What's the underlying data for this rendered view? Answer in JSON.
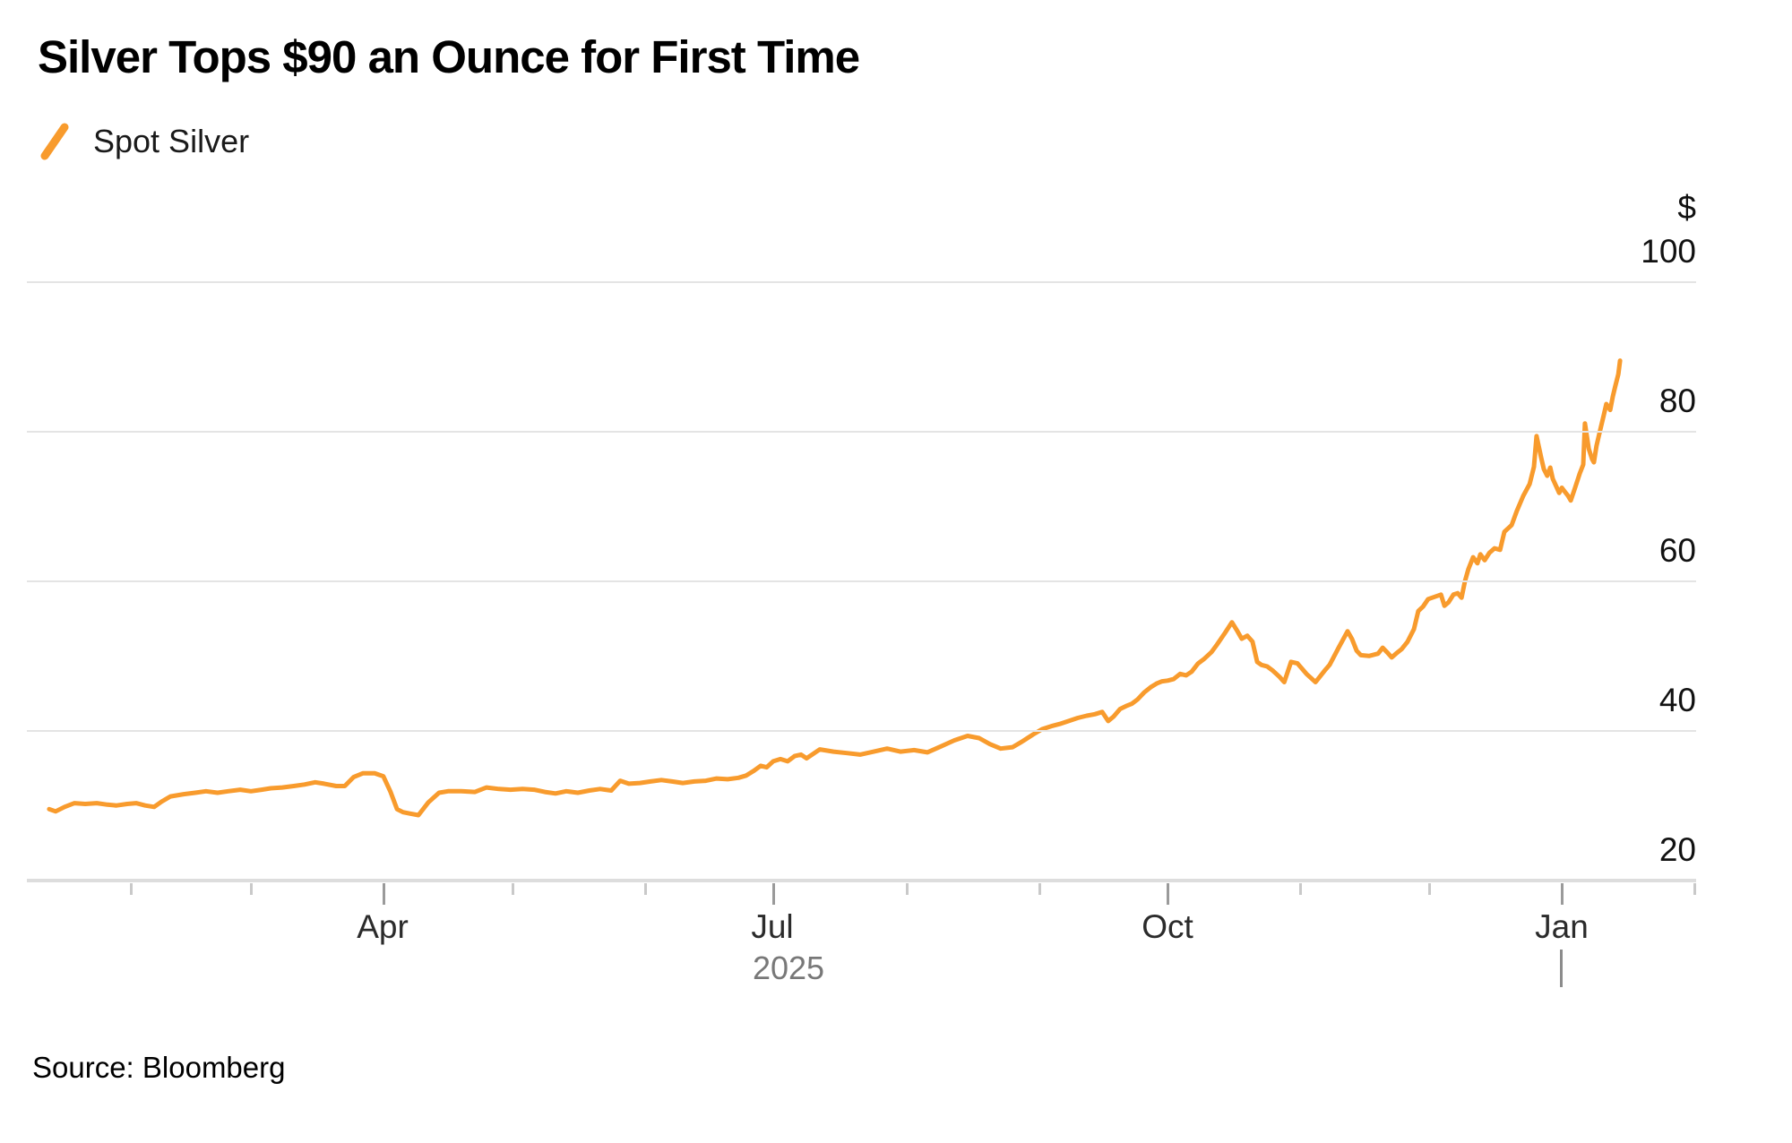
{
  "title": "Silver Tops $90 an Ounce for First Time",
  "legend": {
    "series_label": "Spot Silver"
  },
  "source": "Source: Bloomberg",
  "y_axis": {
    "unit": "$",
    "ticks": [
      {
        "label": "100",
        "value": 100
      },
      {
        "label": "80",
        "value": 80
      },
      {
        "label": "60",
        "value": 60
      },
      {
        "label": "40",
        "value": 40
      },
      {
        "label": "20",
        "value": 20
      }
    ]
  },
  "x_axis": {
    "major_labels": [
      "Apr",
      "Jul",
      "Oct",
      "Jan"
    ],
    "year_label": "2025"
  },
  "colors": {
    "line": "#F89B2D",
    "gridline": "#E4E4E4",
    "axisline": "#DDDDDD",
    "minor_tick": "#C9C9C9",
    "major_tick": "#9A9A9A",
    "title_text": "#000000",
    "axis_label_text": "#2B2B2B",
    "year_text": "#787878"
  },
  "chart_data": {
    "type": "line",
    "title": "Silver Tops $90 an Ounce for First Time",
    "xlabel": "",
    "ylabel": "$",
    "x_unit": "days since 2025-01-01 (0 = Jan 1 2025; 365 = Jan 1 2026)",
    "x_range_days": [
      11.9,
      378.6
    ],
    "ylim": [
      20,
      100
    ],
    "yticks": [
      100,
      80,
      60,
      40,
      20
    ],
    "baseline_tick": 20,
    "grid": "horizontal gridlines only, bottom axis line, labels on right",
    "legend_position": "top-left",
    "year_tick_day": 365,
    "month_ticks": [
      {
        "month": "Feb",
        "day": 31,
        "major": false
      },
      {
        "month": "Mar",
        "day": 59,
        "major": false
      },
      {
        "month": "Apr",
        "day": 90,
        "major": true
      },
      {
        "month": "May",
        "day": 120,
        "major": false
      },
      {
        "month": "Jun",
        "day": 151,
        "major": false
      },
      {
        "month": "Jul",
        "day": 181,
        "major": true
      },
      {
        "month": "Aug",
        "day": 212,
        "major": false
      },
      {
        "month": "Sep",
        "day": 243,
        "major": false
      },
      {
        "month": "Oct",
        "day": 273,
        "major": true
      },
      {
        "month": "Nov",
        "day": 304,
        "major": false
      },
      {
        "month": "Dec",
        "day": 334,
        "major": false
      },
      {
        "month": "Jan",
        "day": 365,
        "major": true
      },
      {
        "month": "Feb",
        "day": 396,
        "major": false
      }
    ],
    "series": [
      {
        "name": "Spot Silver",
        "color": "#F89B2D",
        "points": [
          [
            11.9,
            29.5
          ],
          [
            13.4,
            29.2
          ],
          [
            15.5,
            29.8
          ],
          [
            17.8,
            30.3
          ],
          [
            20.3,
            30.2
          ],
          [
            23.0,
            30.3
          ],
          [
            25.5,
            30.1
          ],
          [
            27.6,
            30.0
          ],
          [
            30.1,
            30.2
          ],
          [
            32.2,
            30.3
          ],
          [
            34.3,
            30.0
          ],
          [
            36.4,
            29.8
          ],
          [
            38.1,
            30.5
          ],
          [
            40.2,
            31.2
          ],
          [
            43.3,
            31.5
          ],
          [
            46.0,
            31.7
          ],
          [
            48.5,
            31.9
          ],
          [
            51.2,
            31.7
          ],
          [
            53.7,
            31.9
          ],
          [
            56.5,
            32.1
          ],
          [
            59.0,
            31.9
          ],
          [
            61.5,
            32.1
          ],
          [
            63.6,
            32.3
          ],
          [
            66.3,
            32.4
          ],
          [
            69.0,
            32.6
          ],
          [
            71.5,
            32.8
          ],
          [
            74.0,
            33.1
          ],
          [
            76.1,
            32.9
          ],
          [
            78.9,
            32.6
          ],
          [
            80.9,
            32.6
          ],
          [
            83.0,
            33.8
          ],
          [
            85.1,
            34.3
          ],
          [
            87.9,
            34.3
          ],
          [
            89.9,
            33.9
          ],
          [
            91.6,
            31.8
          ],
          [
            93.1,
            29.5
          ],
          [
            94.5,
            29.1
          ],
          [
            96.2,
            28.9
          ],
          [
            98.1,
            28.7
          ],
          [
            100.4,
            30.4
          ],
          [
            102.9,
            31.7
          ],
          [
            105.0,
            31.9
          ],
          [
            108.1,
            31.9
          ],
          [
            111.3,
            31.8
          ],
          [
            114.0,
            32.4
          ],
          [
            116.9,
            32.2
          ],
          [
            119.6,
            32.1
          ],
          [
            122.4,
            32.2
          ],
          [
            125.1,
            32.1
          ],
          [
            127.6,
            31.8
          ],
          [
            130.1,
            31.6
          ],
          [
            132.6,
            31.9
          ],
          [
            135.3,
            31.7
          ],
          [
            138.0,
            32.0
          ],
          [
            140.5,
            32.2
          ],
          [
            143.1,
            32.0
          ],
          [
            145.2,
            33.3
          ],
          [
            147.2,
            32.9
          ],
          [
            149.8,
            33.0
          ],
          [
            152.3,
            33.2
          ],
          [
            154.8,
            33.4
          ],
          [
            157.3,
            33.2
          ],
          [
            159.8,
            33.0
          ],
          [
            162.5,
            33.2
          ],
          [
            165.2,
            33.3
          ],
          [
            167.7,
            33.6
          ],
          [
            170.3,
            33.5
          ],
          [
            172.8,
            33.7
          ],
          [
            174.6,
            34.0
          ],
          [
            176.3,
            34.6
          ],
          [
            178.0,
            35.3
          ],
          [
            179.4,
            35.1
          ],
          [
            180.9,
            35.9
          ],
          [
            182.6,
            36.2
          ],
          [
            184.3,
            35.9
          ],
          [
            185.9,
            36.6
          ],
          [
            187.4,
            36.8
          ],
          [
            188.7,
            36.3
          ],
          [
            191.8,
            37.5
          ],
          [
            195.0,
            37.2
          ],
          [
            198.1,
            37.0
          ],
          [
            201.2,
            36.8
          ],
          [
            204.4,
            37.2
          ],
          [
            207.5,
            37.6
          ],
          [
            210.6,
            37.2
          ],
          [
            213.8,
            37.4
          ],
          [
            216.9,
            37.1
          ],
          [
            220.1,
            37.9
          ],
          [
            223.2,
            38.7
          ],
          [
            226.3,
            39.3
          ],
          [
            229.0,
            39.0
          ],
          [
            231.5,
            38.2
          ],
          [
            234.0,
            37.6
          ],
          [
            236.8,
            37.8
          ],
          [
            238.9,
            38.5
          ],
          [
            241.6,
            39.5
          ],
          [
            243.7,
            40.2
          ],
          [
            245.8,
            40.6
          ],
          [
            247.8,
            40.9
          ],
          [
            249.9,
            41.3
          ],
          [
            252.0,
            41.7
          ],
          [
            254.1,
            42.0
          ],
          [
            256.0,
            42.2
          ],
          [
            257.7,
            42.5
          ],
          [
            259.1,
            41.3
          ],
          [
            260.4,
            41.9
          ],
          [
            261.9,
            42.9
          ],
          [
            263.3,
            43.3
          ],
          [
            264.6,
            43.6
          ],
          [
            266.0,
            44.2
          ],
          [
            267.5,
            45.1
          ],
          [
            269.0,
            45.8
          ],
          [
            270.4,
            46.3
          ],
          [
            271.7,
            46.6
          ],
          [
            273.0,
            46.7
          ],
          [
            274.4,
            46.9
          ],
          [
            275.9,
            47.6
          ],
          [
            277.3,
            47.4
          ],
          [
            278.6,
            47.9
          ],
          [
            280.1,
            49.0
          ],
          [
            281.5,
            49.6
          ],
          [
            283.2,
            50.5
          ],
          [
            284.5,
            51.5
          ],
          [
            286.4,
            53.1
          ],
          [
            288.0,
            54.5
          ],
          [
            289.3,
            53.3
          ],
          [
            290.3,
            52.3
          ],
          [
            291.6,
            52.7
          ],
          [
            292.8,
            51.9
          ],
          [
            293.9,
            49.2
          ],
          [
            294.9,
            48.8
          ],
          [
            296.2,
            48.6
          ],
          [
            297.6,
            48.0
          ],
          [
            299.1,
            47.2
          ],
          [
            300.2,
            46.5
          ],
          [
            301.8,
            49.2
          ],
          [
            303.3,
            49.0
          ],
          [
            305.4,
            47.6
          ],
          [
            307.5,
            46.5
          ],
          [
            309.6,
            48.0
          ],
          [
            310.8,
            48.8
          ],
          [
            312.9,
            51.1
          ],
          [
            315.0,
            53.3
          ],
          [
            316.0,
            52.3
          ],
          [
            317.1,
            50.7
          ],
          [
            318.1,
            50.1
          ],
          [
            320.0,
            50.0
          ],
          [
            322.1,
            50.3
          ],
          [
            323.2,
            51.1
          ],
          [
            324.2,
            50.5
          ],
          [
            325.3,
            49.8
          ],
          [
            326.3,
            50.3
          ],
          [
            327.6,
            50.9
          ],
          [
            329.0,
            51.9
          ],
          [
            330.5,
            53.6
          ],
          [
            331.5,
            56.0
          ],
          [
            332.6,
            56.6
          ],
          [
            333.8,
            57.6
          ],
          [
            335.3,
            57.9
          ],
          [
            336.8,
            58.2
          ],
          [
            337.6,
            56.7
          ],
          [
            338.6,
            57.2
          ],
          [
            339.7,
            58.2
          ],
          [
            340.7,
            58.4
          ],
          [
            341.6,
            57.8
          ],
          [
            342.4,
            60.0
          ],
          [
            343.2,
            61.6
          ],
          [
            344.3,
            63.2
          ],
          [
            345.3,
            62.4
          ],
          [
            346.0,
            63.6
          ],
          [
            347.0,
            62.8
          ],
          [
            348.1,
            63.8
          ],
          [
            349.3,
            64.4
          ],
          [
            350.6,
            64.2
          ],
          [
            351.6,
            66.6
          ],
          [
            353.3,
            67.5
          ],
          [
            354.5,
            69.4
          ],
          [
            356.0,
            71.4
          ],
          [
            357.5,
            73.0
          ],
          [
            358.5,
            75.3
          ],
          [
            359.1,
            79.4
          ],
          [
            360.2,
            76.5
          ],
          [
            360.8,
            75.0
          ],
          [
            361.6,
            74.1
          ],
          [
            362.3,
            75.2
          ],
          [
            362.9,
            73.7
          ],
          [
            363.7,
            72.7
          ],
          [
            364.4,
            71.8
          ],
          [
            365.0,
            72.5
          ],
          [
            365.8,
            71.9
          ],
          [
            366.5,
            71.4
          ],
          [
            367.1,
            70.8
          ],
          [
            368.1,
            72.5
          ],
          [
            369.2,
            74.4
          ],
          [
            370.0,
            75.6
          ],
          [
            370.4,
            81.1
          ],
          [
            371.3,
            77.7
          ],
          [
            372.1,
            76.3
          ],
          [
            372.5,
            75.9
          ],
          [
            373.1,
            78.1
          ],
          [
            373.8,
            79.8
          ],
          [
            374.8,
            82.2
          ],
          [
            375.4,
            83.7
          ],
          [
            376.3,
            82.9
          ],
          [
            376.9,
            84.7
          ],
          [
            377.5,
            86.1
          ],
          [
            378.2,
            87.7
          ],
          [
            378.6,
            89.5
          ]
        ]
      }
    ]
  }
}
